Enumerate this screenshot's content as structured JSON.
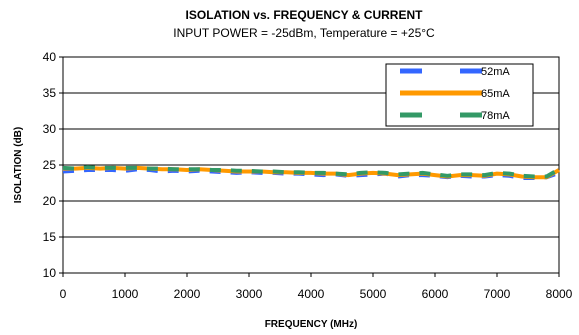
{
  "chart_data": {
    "type": "line",
    "title": "ISOLATION vs. FREQUENCY & CURRENT",
    "subtitle": "INPUT POWER = -25dBm, Temperature = +25°C",
    "xlabel": "FREQUENCY (MHz)",
    "ylabel": "ISOLATION (dB)",
    "xlim": [
      0,
      8000
    ],
    "ylim": [
      10,
      40
    ],
    "xticks": [
      0,
      1000,
      2000,
      3000,
      4000,
      5000,
      6000,
      7000,
      8000
    ],
    "yticks": [
      10,
      15,
      20,
      25,
      30,
      35,
      40
    ],
    "grid": "horizontal",
    "legend_position": "top-right",
    "series": [
      {
        "name": "52mA",
        "color": "#3366ff",
        "style": "dashed",
        "x": [
          0,
          200,
          400,
          600,
          800,
          1000,
          1200,
          1400,
          1600,
          1800,
          2000,
          2200,
          2400,
          2600,
          2800,
          3000,
          3200,
          3400,
          3600,
          3800,
          4000,
          4200,
          4400,
          4600,
          4800,
          5000,
          5200,
          5400,
          5600,
          5800,
          6000,
          6200,
          6400,
          6600,
          6800,
          7000,
          7200,
          7400,
          7600,
          7800,
          8000
        ],
        "y": [
          24.1,
          24.2,
          24.3,
          24.3,
          24.3,
          24.2,
          24.4,
          24.3,
          24.1,
          24.2,
          24.1,
          24.2,
          24.1,
          24.0,
          23.9,
          24.0,
          23.9,
          23.9,
          23.8,
          23.8,
          23.7,
          23.6,
          23.7,
          23.5,
          23.6,
          23.7,
          23.8,
          23.4,
          23.6,
          23.6,
          23.5,
          23.3,
          23.5,
          23.4,
          23.4,
          23.6,
          23.5,
          23.2,
          23.2,
          23.3,
          23.9
        ]
      },
      {
        "name": "65mA",
        "color": "#ff9900",
        "style": "solid",
        "x": [
          0,
          200,
          400,
          600,
          800,
          1000,
          1200,
          1400,
          1600,
          1800,
          2000,
          2200,
          2400,
          2600,
          2800,
          3000,
          3200,
          3400,
          3600,
          3800,
          4000,
          4200,
          4400,
          4600,
          4800,
          5000,
          5200,
          5400,
          5600,
          5800,
          6000,
          6200,
          6400,
          6600,
          6800,
          7000,
          7200,
          7400,
          7600,
          7800,
          8000
        ],
        "y": [
          24.5,
          24.5,
          24.6,
          24.5,
          24.6,
          24.5,
          24.6,
          24.5,
          24.4,
          24.4,
          24.3,
          24.4,
          24.3,
          24.2,
          24.1,
          24.1,
          24.1,
          24.0,
          24.0,
          23.9,
          23.9,
          23.8,
          23.8,
          23.6,
          23.8,
          23.9,
          23.8,
          23.6,
          23.7,
          23.8,
          23.6,
          23.4,
          23.6,
          23.6,
          23.5,
          23.8,
          23.7,
          23.4,
          23.3,
          23.3,
          24.3
        ]
      },
      {
        "name": "78mA",
        "color": "#339966",
        "style": "dashed",
        "x": [
          0,
          200,
          400,
          600,
          800,
          1000,
          1200,
          1400,
          1600,
          1800,
          2000,
          2200,
          2400,
          2600,
          2800,
          3000,
          3200,
          3400,
          3600,
          3800,
          4000,
          4200,
          4400,
          4600,
          4800,
          5000,
          5200,
          5400,
          5600,
          5800,
          6000,
          6200,
          6400,
          6600,
          6800,
          7000,
          7200,
          7400,
          7600,
          7800,
          8000
        ],
        "y": [
          24.6,
          24.5,
          24.7,
          24.6,
          24.6,
          24.6,
          24.6,
          24.5,
          24.5,
          24.4,
          24.4,
          24.4,
          24.3,
          24.3,
          24.2,
          24.2,
          24.1,
          24.1,
          24.0,
          24.0,
          23.9,
          23.9,
          23.8,
          23.7,
          23.9,
          24.0,
          23.9,
          23.7,
          23.8,
          23.9,
          23.7,
          23.5,
          23.7,
          23.7,
          23.6,
          23.9,
          23.8,
          23.5,
          23.4,
          23.4,
          24.4
        ]
      }
    ]
  }
}
